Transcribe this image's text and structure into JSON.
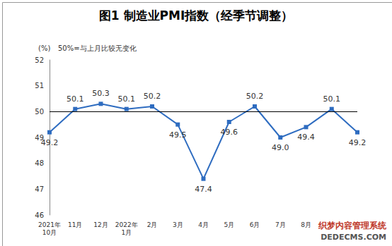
{
  "chart_data": {
    "type": "line",
    "title": "图1 制造业PMI指数（经季节调整）",
    "y_label": "(%)",
    "annotations": [
      "50%=与上月比较无变化",
      "织梦内容管理系统",
      "DEDECMS.COM"
    ],
    "categories": [
      "2021年\n10月",
      "11月",
      "12月",
      "2022年\n1月",
      "2月",
      "3月",
      "4月",
      "5月",
      "6月",
      "7月",
      "8月",
      null,
      null
    ],
    "values": [
      49.2,
      50.1,
      50.3,
      50.1,
      50.2,
      49.5,
      47.4,
      49.6,
      50.2,
      49.0,
      49.4,
      50.1,
      49.2
    ],
    "value_labels": [
      "49.2",
      "50.1",
      "50.3",
      "50.1",
      "50.2",
      "49.5",
      "47.4",
      "49.6",
      "50.2",
      "49.0",
      "49.4",
      "50.1",
      "49.2"
    ],
    "baseline": 50,
    "color": "#2e6cc0",
    "marker": "square",
    "ylim": [
      46,
      52
    ],
    "yticks": [
      46,
      47,
      48,
      49,
      50,
      51,
      52
    ],
    "grid": false,
    "data_labels": true
  }
}
